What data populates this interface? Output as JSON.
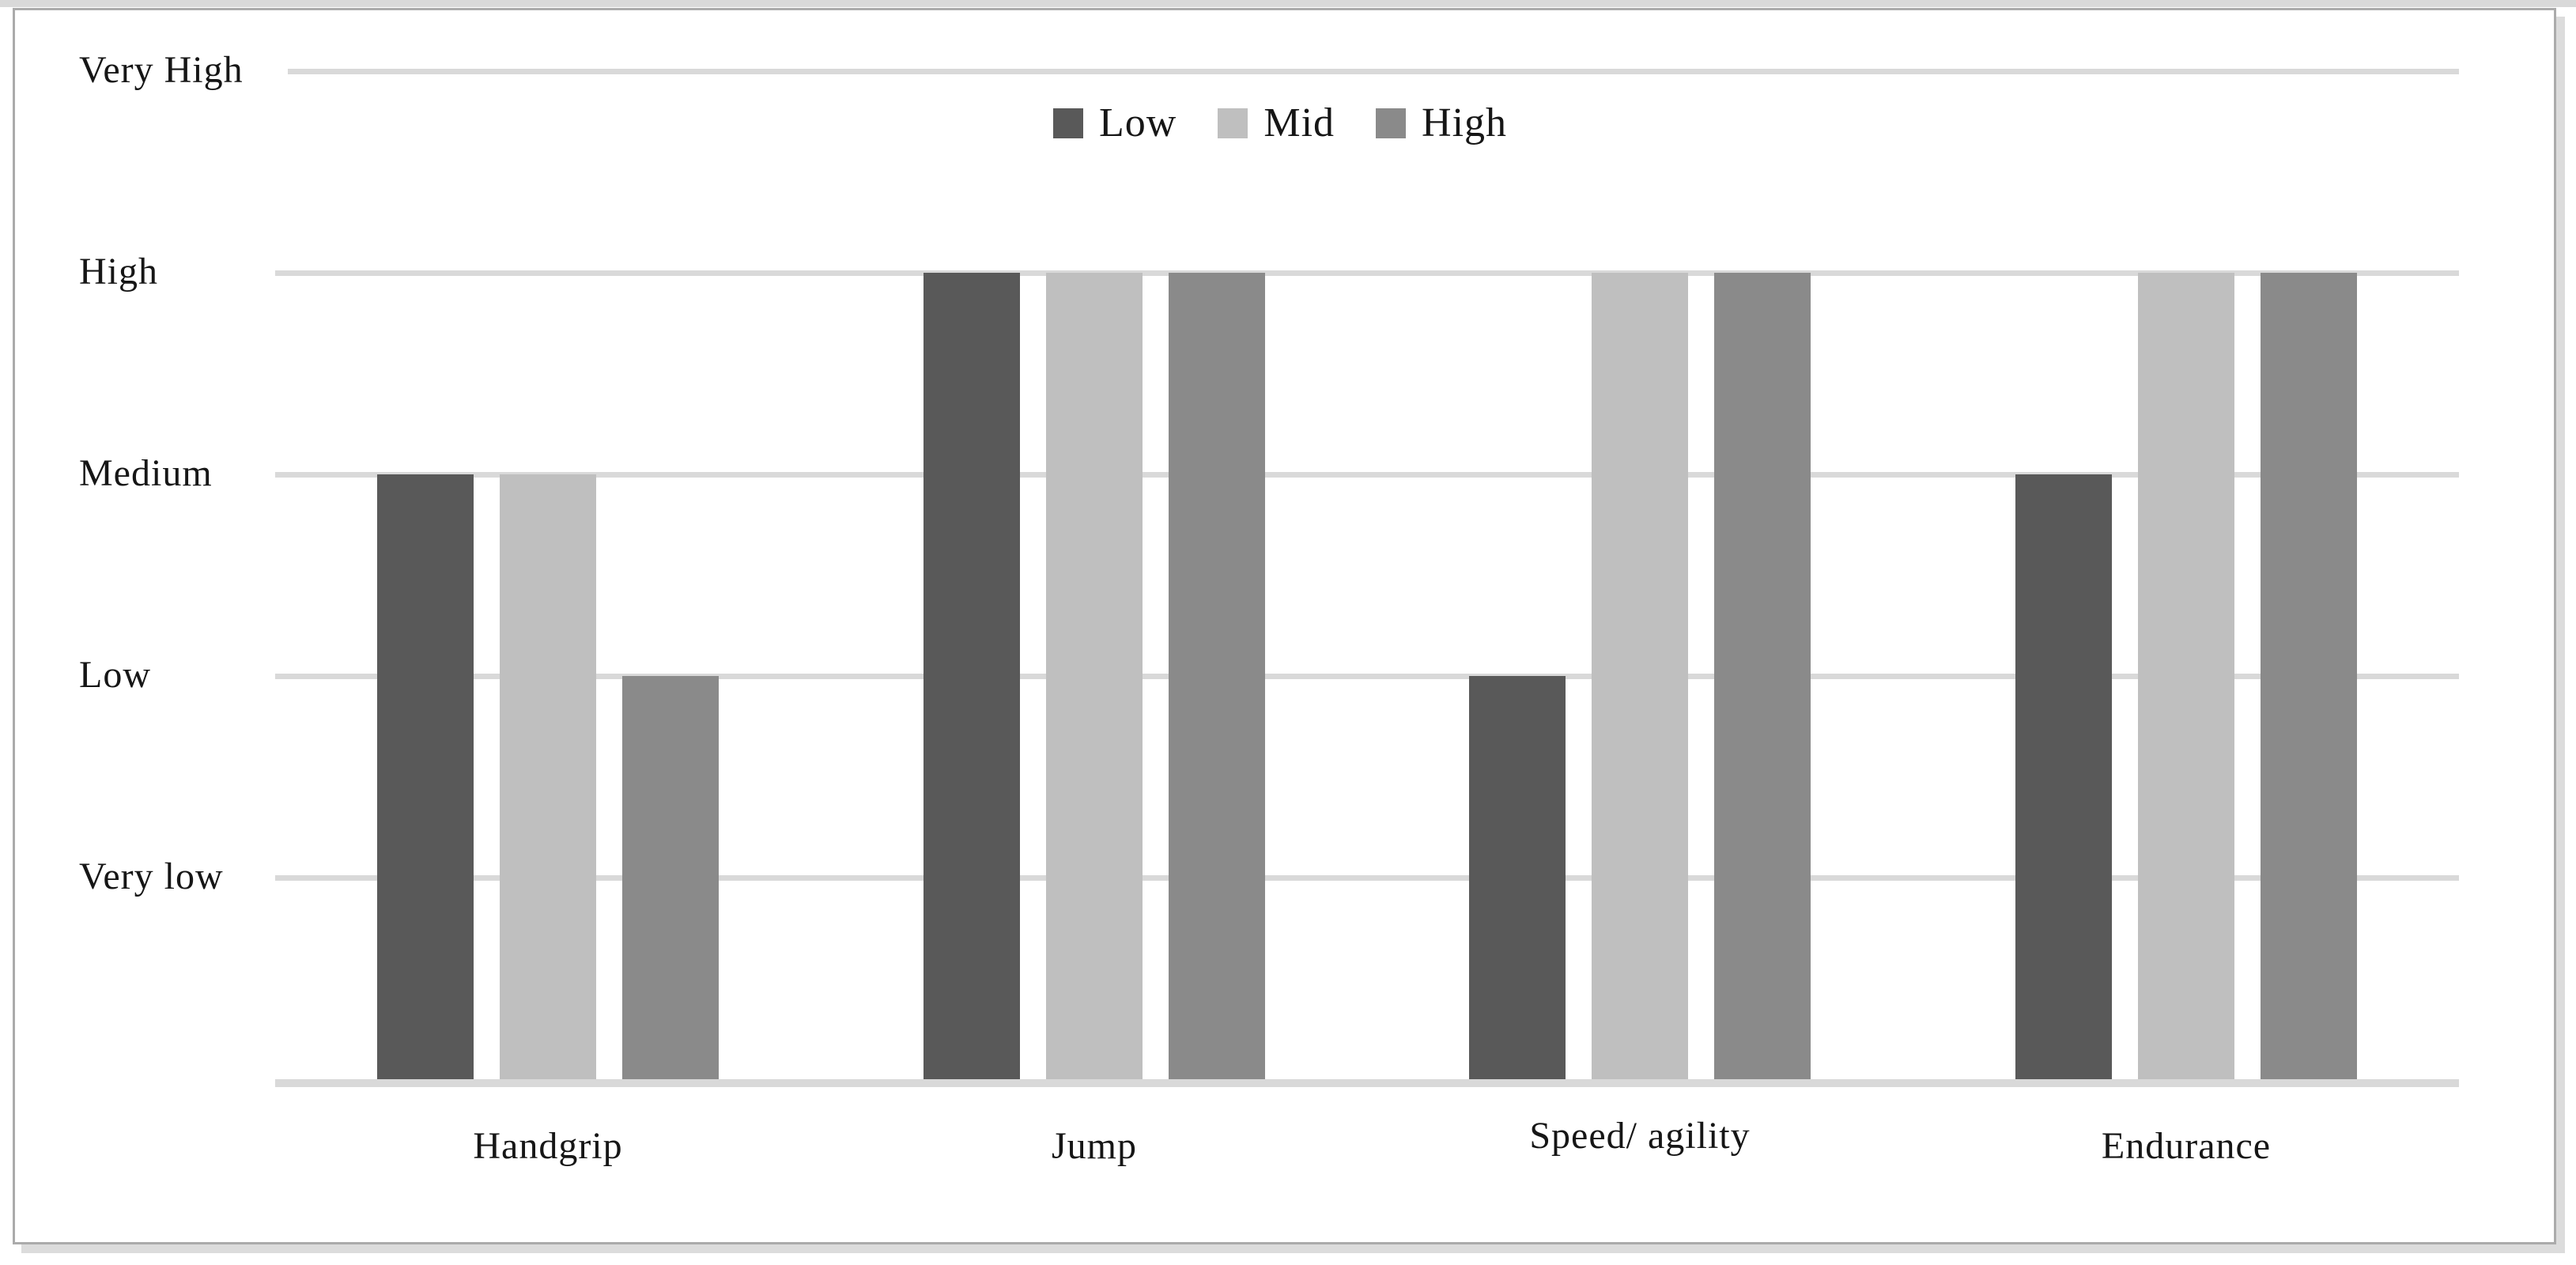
{
  "figure": {
    "background": "#ffffff",
    "frame_border_color": "#ababab",
    "frame_shadow_color": "#dcdcdc",
    "top_strip_color": "#d9d9d9",
    "text_color": "#161616"
  },
  "chart_data": {
    "type": "bar",
    "title": "",
    "xlabel": "",
    "ylabel": "",
    "categories": [
      "Handgrip",
      "Jump",
      "Speed/ agility",
      "Endurance"
    ],
    "series": [
      {
        "name": "Low",
        "color": "#595959",
        "values": [
          3,
          4,
          2,
          3
        ],
        "value_labels": [
          "Medium",
          "High",
          "Low",
          "Medium"
        ]
      },
      {
        "name": "Mid",
        "color": "#bfbfbf",
        "values": [
          3,
          4,
          4,
          4
        ],
        "value_labels": [
          "Medium",
          "High",
          "High",
          "High"
        ]
      },
      {
        "name": "High",
        "color": "#8a8a8a",
        "values": [
          2,
          4,
          4,
          4
        ],
        "value_labels": [
          "Low",
          "High",
          "High",
          "High"
        ]
      }
    ],
    "y_ticks": [
      {
        "value": 5,
        "label": "Very High"
      },
      {
        "value": 4,
        "label": "High"
      },
      {
        "value": 3,
        "label": "Medium"
      },
      {
        "value": 2,
        "label": "Low"
      },
      {
        "value": 1,
        "label": "Very low"
      }
    ],
    "ylim": [
      0,
      5
    ],
    "grid": true,
    "gridline_color": "#d9d9d9",
    "axis_line_color": "#d9d9d9",
    "legend_position": "top-center"
  }
}
